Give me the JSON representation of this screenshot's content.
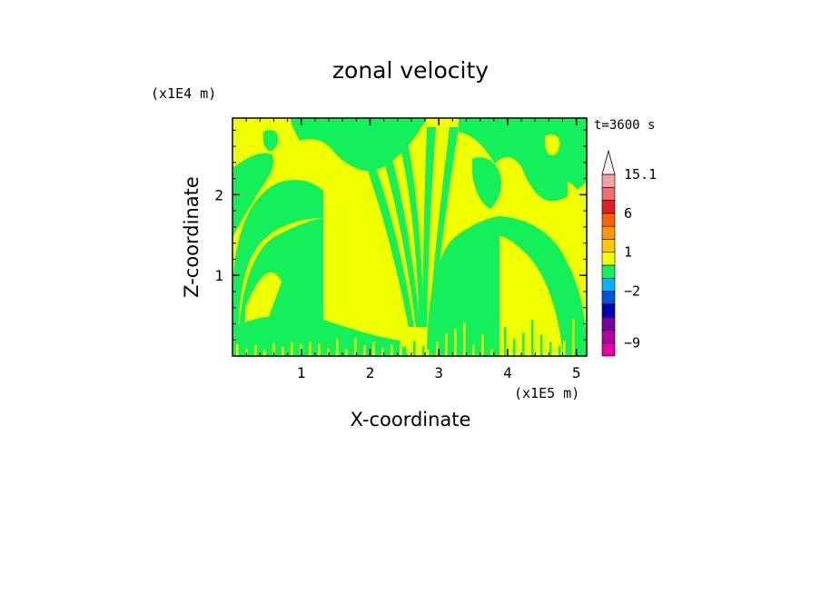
{
  "chart_data": {
    "type": "heatmap",
    "title": "zonal velocity",
    "xlabel": "X-coordinate",
    "ylabel": "Z-coordinate",
    "x_scale_label": "(x1E5 m)",
    "y_scale_label": "(x1E4 m)",
    "time_label": "t=3600 s",
    "xlim": [
      0,
      5.15
    ],
    "ylim": [
      0,
      2.95
    ],
    "x_ticks": [
      1,
      2,
      3,
      4,
      5
    ],
    "y_ticks": [
      1,
      2
    ],
    "x_tick_labels": [
      "1",
      "2",
      "3",
      "4",
      "5"
    ],
    "y_tick_labels": [
      "1",
      "2"
    ],
    "field_colors": {
      "positive": "#f0ff00",
      "negative": "#14f05a"
    },
    "colorbar": {
      "labels": [
        {
          "text": "15.1",
          "value": 15.1
        },
        {
          "text": "6",
          "value": 6
        },
        {
          "text": "1",
          "value": 1
        },
        {
          "text": "−2",
          "value": -2
        },
        {
          "text": "−9",
          "value": -9
        }
      ],
      "bands": [
        {
          "color": "#e600a0",
          "value": -12
        },
        {
          "color": "#b400a0",
          "value": -9
        },
        {
          "color": "#7800a0",
          "value": -7
        },
        {
          "color": "#0000b4",
          "value": -5
        },
        {
          "color": "#0050dc",
          "value": -3
        },
        {
          "color": "#00b4ff",
          "value": -2
        },
        {
          "color": "#14f05a",
          "value": -1
        },
        {
          "color": "#f0ff00",
          "value": 0
        },
        {
          "color": "#ffc800",
          "value": 1
        },
        {
          "color": "#ff9600",
          "value": 2
        },
        {
          "color": "#ff6400",
          "value": 4
        },
        {
          "color": "#e61e1e",
          "value": 6
        },
        {
          "color": "#f06e6e",
          "value": 10
        },
        {
          "color": "#f5a0a0",
          "value": 13
        },
        {
          "color": "#fff0f0",
          "value": 15.1
        }
      ]
    }
  }
}
